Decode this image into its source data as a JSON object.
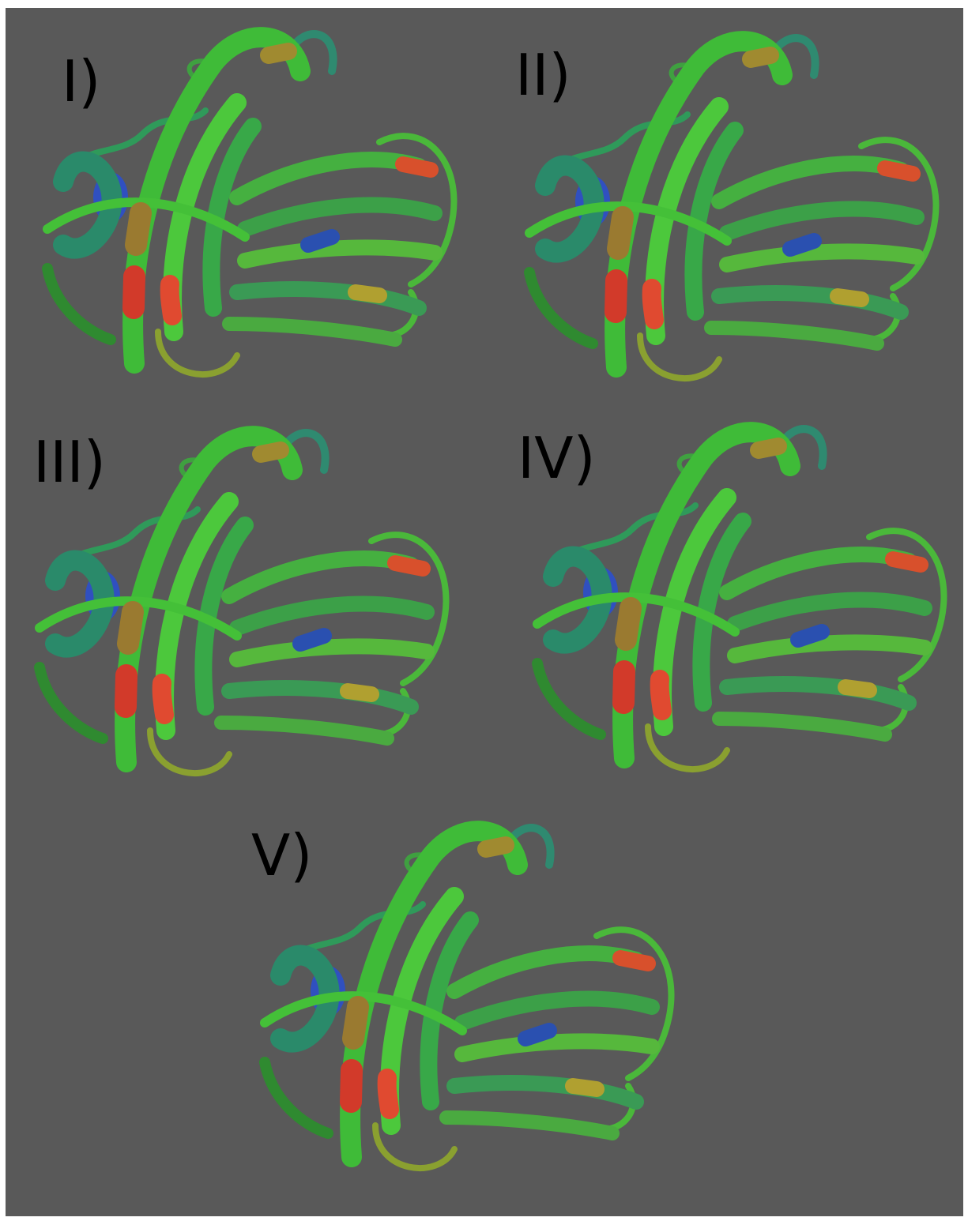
{
  "panels": [
    {
      "label": "I)"
    },
    {
      "label": "II)"
    },
    {
      "label": "III)"
    },
    {
      "label": "IV)"
    },
    {
      "label": "V)"
    }
  ]
}
